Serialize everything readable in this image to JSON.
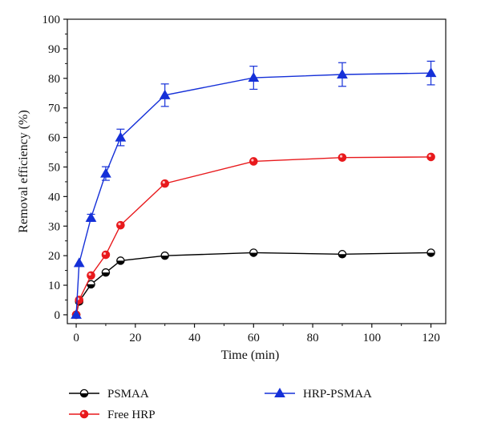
{
  "chart_data": {
    "type": "line",
    "xlabel": "Time (min)",
    "ylabel": "Removal efficiency (%)",
    "xlim": [
      -3,
      125
    ],
    "ylim": [
      -3,
      100
    ],
    "x_ticks": [
      0,
      20,
      40,
      60,
      80,
      100,
      120
    ],
    "y_ticks": [
      0,
      10,
      20,
      30,
      40,
      50,
      60,
      70,
      80,
      90,
      100
    ],
    "grid": false,
    "legend_position": "bottom",
    "series": [
      {
        "name": "PSMAA",
        "color": "#000000",
        "marker": "half-filled-circle",
        "x": [
          0,
          1,
          5,
          10,
          15,
          30,
          60,
          90,
          120
        ],
        "y": [
          0,
          4.5,
          10.3,
          14.3,
          18.3,
          20.0,
          21.0,
          20.5,
          21.0
        ]
      },
      {
        "name": "Free HRP",
        "color": "#e8191c",
        "marker": "circle",
        "x": [
          0,
          1,
          5,
          10,
          15,
          30,
          60,
          90,
          120
        ],
        "y": [
          0,
          5.0,
          13.3,
          20.3,
          30.3,
          44.4,
          51.9,
          53.2,
          53.4
        ]
      },
      {
        "name": "HRP-PSMAA",
        "color": "#1530d8",
        "marker": "triangle",
        "x": [
          0,
          1,
          5,
          10,
          15,
          30,
          60,
          90,
          120
        ],
        "y": [
          0,
          17.5,
          32.8,
          47.8,
          60.0,
          74.3,
          80.2,
          81.3,
          81.8
        ],
        "error": [
          0,
          0,
          1.2,
          2.3,
          2.8,
          3.8,
          3.9,
          4.0,
          4.0
        ]
      }
    ]
  }
}
